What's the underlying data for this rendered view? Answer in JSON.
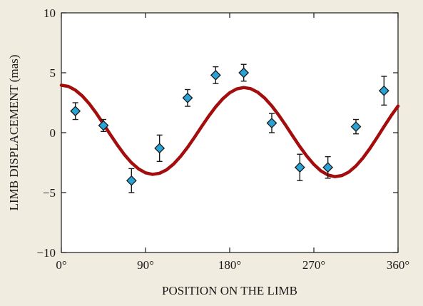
{
  "chart_data": {
    "type": "scatter",
    "title": "",
    "xlabel": "POSITION ON THE LIMB",
    "ylabel": "LIMB DISPLACEMENT (mas)",
    "xlim": [
      0,
      360
    ],
    "ylim": [
      -10,
      10
    ],
    "x_ticks": [
      {
        "value": 0,
        "label": "0°"
      },
      {
        "value": 90,
        "label": "90°"
      },
      {
        "value": 180,
        "label": "180°"
      },
      {
        "value": 270,
        "label": "270°"
      },
      {
        "value": 360,
        "label": "360°"
      }
    ],
    "y_ticks": [
      {
        "value": -10,
        "label": "−10"
      },
      {
        "value": -5,
        "label": "−5"
      },
      {
        "value": 0,
        "label": "0"
      },
      {
        "value": 5,
        "label": "5"
      },
      {
        "value": 10,
        "label": "10"
      }
    ],
    "grid": false,
    "legend": "none",
    "series": [
      {
        "type": "scatter",
        "marker": "diamond",
        "color": "#29a3d6",
        "x": [
          15,
          45,
          75,
          105,
          135,
          165,
          195,
          225,
          255,
          285,
          315,
          345
        ],
        "y": [
          1.8,
          0.6,
          -4.0,
          -1.3,
          2.9,
          4.8,
          5.0,
          0.8,
          -2.9,
          -2.9,
          0.5,
          3.5
        ],
        "error": [
          0.7,
          0.5,
          1.0,
          1.1,
          0.7,
          0.7,
          0.7,
          0.8,
          1.1,
          0.9,
          0.6,
          1.2
        ]
      },
      {
        "type": "line",
        "color": "#a30d0d",
        "x": [
          0,
          7.5,
          15,
          22.5,
          30,
          37.5,
          45,
          52.5,
          60,
          67.5,
          75,
          82.5,
          90,
          97.5,
          105,
          112.5,
          120,
          127.5,
          135,
          142.5,
          150,
          157.5,
          165,
          172.5,
          180,
          187.5,
          195,
          202.5,
          210,
          217.5,
          225,
          232.5,
          240,
          247.5,
          255,
          262.5,
          270,
          277.5,
          285,
          292.5,
          300,
          307.5,
          315,
          322.5,
          330,
          337.5,
          345,
          352.5,
          360
        ],
        "y": [
          3.96,
          3.86,
          3.55,
          3.06,
          2.4,
          1.61,
          0.73,
          -0.17,
          -1.04,
          -1.84,
          -2.51,
          -3.02,
          -3.35,
          -3.48,
          -3.39,
          -3.1,
          -2.62,
          -1.98,
          -1.22,
          -0.37,
          0.51,
          1.37,
          2.15,
          2.82,
          3.33,
          3.65,
          3.77,
          3.67,
          3.37,
          2.88,
          2.23,
          1.46,
          0.6,
          -0.29,
          -1.16,
          -1.96,
          -2.65,
          -3.19,
          -3.53,
          -3.67,
          -3.58,
          -3.28,
          -2.78,
          -2.11,
          -1.31,
          -0.42,
          0.5,
          1.4,
          2.22
        ]
      }
    ]
  }
}
